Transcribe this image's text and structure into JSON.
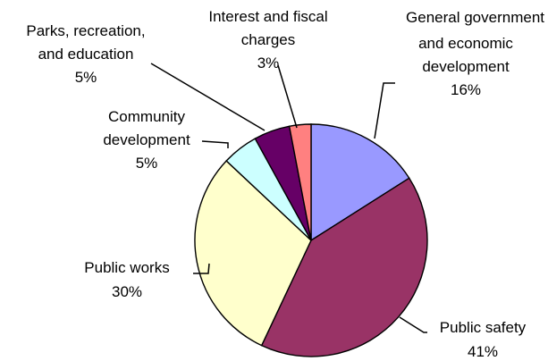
{
  "chart_data": {
    "type": "pie",
    "title": "",
    "start_angle_deg": 0,
    "direction": "clockwise",
    "slices": [
      {
        "label_lines": [
          "General government",
          "and economic",
          "development"
        ],
        "value": 16,
        "value_label": "16%",
        "color": "#9999FF"
      },
      {
        "label_lines": [
          "Public safety"
        ],
        "value": 41,
        "value_label": "41%",
        "color": "#993366"
      },
      {
        "label_lines": [
          "Public works"
        ],
        "value": 30,
        "value_label": "30%",
        "color": "#FFFFCC"
      },
      {
        "label_lines": [
          "Community",
          "development"
        ],
        "value": 5,
        "value_label": "5%",
        "color": "#CCFFFF"
      },
      {
        "label_lines": [
          "Parks, recreation,",
          "and education"
        ],
        "value": 5,
        "value_label": "5%",
        "color": "#660066"
      },
      {
        "label_lines": [
          "Interest and fiscal",
          "charges"
        ],
        "value": 3,
        "value_label": "3%",
        "color": "#FF8080"
      }
    ]
  }
}
